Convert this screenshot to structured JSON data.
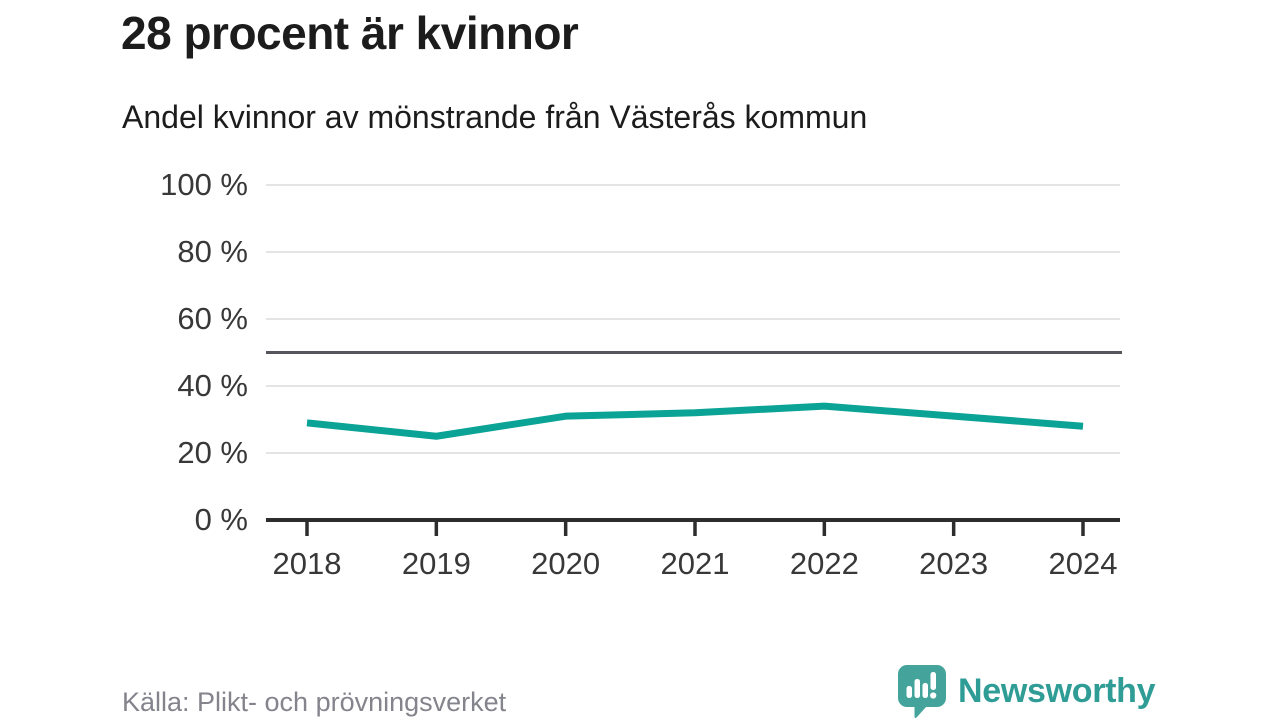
{
  "chart_data": {
    "type": "line",
    "title": "28 procent är kvinnor",
    "subtitle": "Andel kvinnor av mönstrande från Västerås kommun",
    "x": [
      2018,
      2019,
      2020,
      2021,
      2022,
      2023,
      2024
    ],
    "values": [
      29,
      25,
      31,
      32,
      34,
      31,
      28
    ],
    "unit": "%",
    "xlabel": "",
    "ylabel": "",
    "ylim": [
      0,
      100
    ],
    "yticks": [
      0,
      20,
      40,
      60,
      80,
      100
    ],
    "ytick_labels": [
      "0 %",
      "20 %",
      "40 %",
      "60 %",
      "80 %",
      "100 %"
    ],
    "reference_line": 50,
    "grid": true,
    "legend_position": "none"
  },
  "footer": {
    "source": "Källa: Plikt- och prövningsverket",
    "brand": "Newsworthy"
  },
  "colors": {
    "line": "#0aa396",
    "reference_line": "#55555d",
    "grid": "#e4e4e4",
    "axis": "#2d2d2d",
    "tick_label": "#383838",
    "title_text": "#1c1c1c",
    "source_text": "#84848c",
    "brand_text": "#2f9c95",
    "logo_bubble": "#44a49c"
  }
}
